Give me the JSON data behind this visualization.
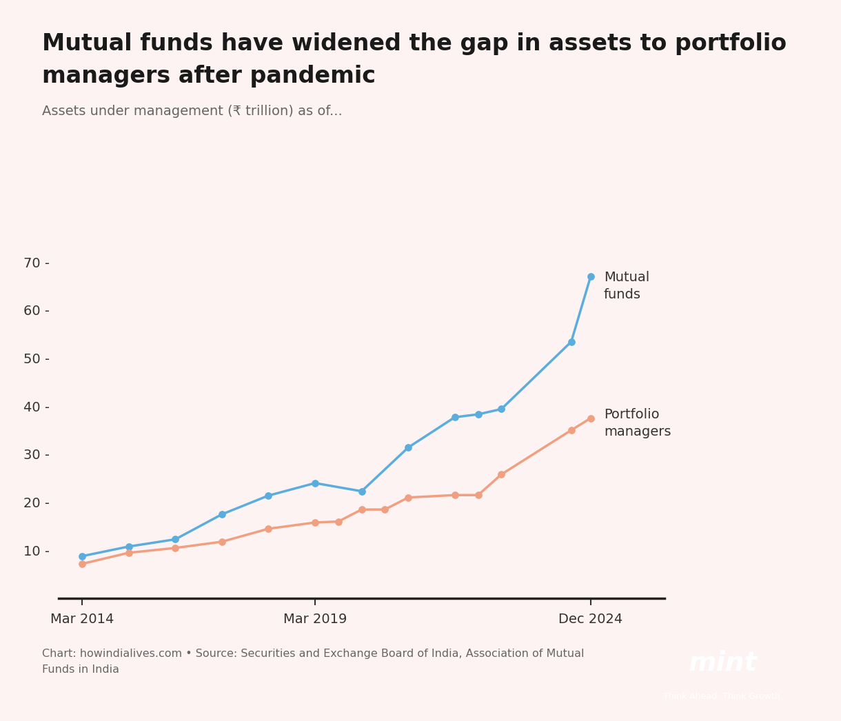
{
  "title_line1": "Mutual funds have widened the gap in assets to portfolio",
  "title_line2": "managers after pandemic",
  "subtitle": "Assets under management (₹ trillion) as of...",
  "bg_color": "#fdf3f3",
  "mf_x": [
    2014.0,
    2015.0,
    2016.0,
    2017.0,
    2018.0,
    2019.0,
    2020.0,
    2021.0,
    2022.0,
    2022.5,
    2023.0,
    2024.5,
    2024.917
  ],
  "mf_y": [
    8.8,
    10.8,
    12.3,
    17.5,
    21.4,
    24.0,
    22.3,
    31.4,
    37.7,
    38.3,
    39.4,
    53.4,
    67.0
  ],
  "pm_x": [
    2014.0,
    2015.0,
    2016.0,
    2017.0,
    2018.0,
    2019.0,
    2019.5,
    2020.0,
    2020.5,
    2021.0,
    2022.0,
    2022.5,
    2023.0,
    2024.5,
    2024.917
  ],
  "pm_y": [
    7.2,
    9.5,
    10.5,
    11.8,
    14.5,
    15.8,
    16.0,
    18.5,
    18.5,
    21.0,
    21.5,
    21.5,
    25.8,
    35.0,
    37.5
  ],
  "mf_color": "#5aaddc",
  "pm_color": "#f0a080",
  "title_color": "#1a1a1a",
  "subtitle_color": "#666666",
  "axis_color": "#333333",
  "source_text": "Chart: howindialives.com • Source: Securities and Exchange Board of India, Association of Mutual\nFunds in India",
  "mint_bg_color": "#f5a623",
  "xtick_labels": [
    "Mar 2014",
    "Mar 2019",
    "Dec 2024"
  ],
  "xtick_positions": [
    2014.0,
    2019.0,
    2024.917
  ],
  "ytick_values": [
    10,
    20,
    30,
    40,
    50,
    60,
    70
  ],
  "xlim_left": 2013.5,
  "xlim_right": 2026.5,
  "ylim_top": 78
}
